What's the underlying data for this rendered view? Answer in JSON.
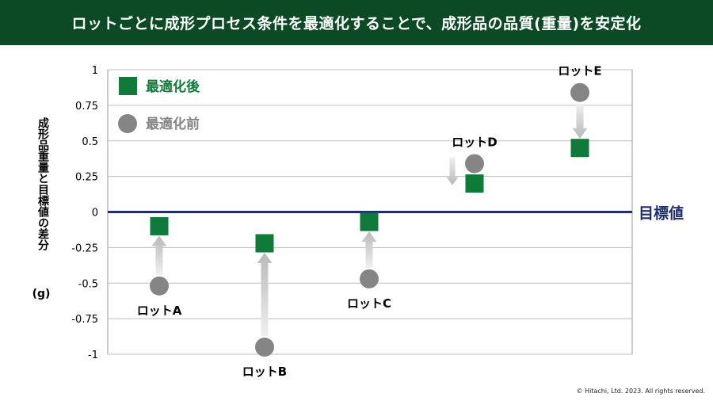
{
  "header": {
    "title": "ロットごとに成形プロセス条件を最適化することで、成形品の品質(重量)を安定化"
  },
  "copyright": "© Hitachi, Ltd. 2023. All rights reserved.",
  "chart_data": {
    "type": "scatter",
    "title": "",
    "ylabel": "成形品重量と目標値の差分",
    "ylabel_unit": "(g)",
    "ylim": [
      -1,
      1
    ],
    "yticks": [
      1,
      0.75,
      0.5,
      0.25,
      0,
      -0.25,
      -0.5,
      -0.75,
      -1
    ],
    "ytick_labels": [
      "1",
      "0.75",
      "0.5",
      "0.25",
      "0",
      "-0.25",
      "-0.5",
      "-0.75",
      "-1"
    ],
    "grid": true,
    "legend_position": "top-left",
    "categories": [
      "ロットA",
      "ロットB",
      "ロットC",
      "ロットD",
      "ロットE"
    ],
    "series": [
      {
        "name": "最適化後",
        "marker": "square",
        "color": "#0f7a3a",
        "values": [
          -0.1,
          -0.22,
          -0.07,
          0.2,
          0.45
        ]
      },
      {
        "name": "最適化前",
        "marker": "circle",
        "color": "#858585",
        "values": [
          -0.52,
          -0.95,
          -0.47,
          0.34,
          0.84
        ]
      }
    ],
    "reference_line": {
      "value": 0,
      "label": "目標値",
      "color": "#1f2f6e"
    }
  }
}
